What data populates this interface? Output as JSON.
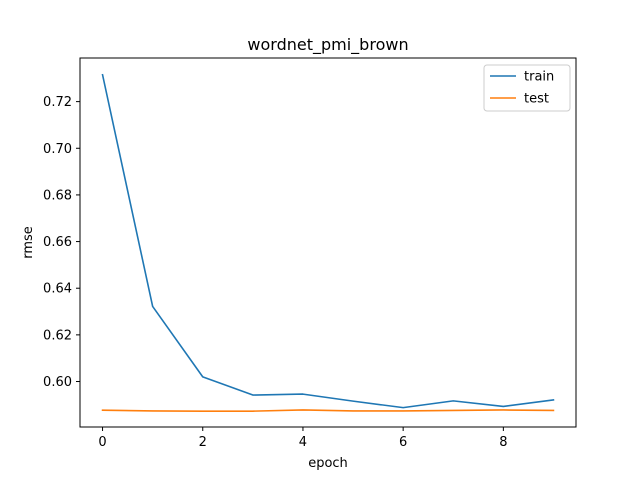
{
  "chart_data": {
    "type": "line",
    "title": "wordnet_pmi_brown",
    "xlabel": "epoch",
    "ylabel": "rmse",
    "x": [
      0,
      1,
      2,
      3,
      4,
      5,
      6,
      7,
      8,
      9
    ],
    "series": [
      {
        "name": "train",
        "color": "#1f77b4",
        "values": [
          0.7315,
          0.6322,
          0.602,
          0.5942,
          0.5946,
          0.5916,
          0.5888,
          0.5917,
          0.5893,
          0.5921
        ]
      },
      {
        "name": "test",
        "color": "#ff7f0e",
        "values": [
          0.5877,
          0.5874,
          0.5873,
          0.5873,
          0.5878,
          0.5874,
          0.5874,
          0.5876,
          0.5878,
          0.5876
        ]
      }
    ],
    "xticks": [
      0,
      2,
      4,
      6,
      8
    ],
    "yticks": [
      0.6,
      0.62,
      0.64,
      0.66,
      0.68,
      0.7,
      0.72
    ],
    "xlim": [
      -0.45,
      9.45
    ],
    "ylim": [
      0.5805,
      0.7387
    ],
    "grid": false,
    "legend_position": "top-right"
  }
}
